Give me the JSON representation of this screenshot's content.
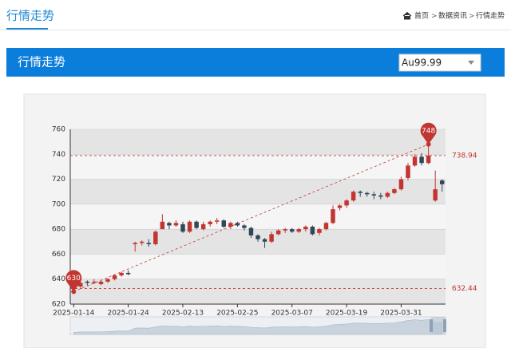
{
  "header": {
    "title": "行情走势",
    "breadcrumb": [
      "首页",
      "数据资讯",
      "行情走势"
    ],
    "separator": ">"
  },
  "panel": {
    "title": "行情走势",
    "select": "Au99.99"
  },
  "chart_data": {
    "type": "candlestick",
    "categories": [
      "2025-01-14",
      null,
      null,
      null,
      null,
      null,
      null,
      null,
      "2025-01-24",
      null,
      null,
      null,
      null,
      null,
      null,
      null,
      "2025-02-13",
      null,
      null,
      null,
      null,
      null,
      null,
      null,
      "2025-02-25",
      null,
      null,
      null,
      null,
      null,
      null,
      null,
      "2025-03-07",
      null,
      null,
      null,
      null,
      null,
      null,
      null,
      "2025-03-19",
      null,
      null,
      null,
      null,
      null,
      null,
      null,
      "2025-03-31",
      null,
      null,
      null,
      null,
      null,
      null
    ],
    "open": [
      634,
      634,
      638,
      637,
      636,
      638,
      640,
      643,
      645,
      668,
      669,
      669,
      668,
      680,
      685,
      683,
      684,
      678,
      686,
      680,
      684,
      686,
      687,
      682,
      685,
      683,
      681,
      675,
      672,
      670,
      676,
      679,
      680,
      678,
      680,
      682,
      677,
      680,
      685,
      697,
      699,
      703,
      710,
      709,
      708,
      707,
      706,
      709,
      712,
      721,
      731,
      738,
      733,
      703,
      719
    ],
    "close": [
      633,
      637,
      637,
      638,
      638,
      640,
      643,
      645,
      644,
      669,
      670,
      668,
      678,
      686,
      683,
      685,
      678,
      686,
      681,
      684,
      686,
      687,
      682,
      685,
      683,
      681,
      675,
      672,
      670,
      676,
      679,
      680,
      678,
      680,
      682,
      676,
      680,
      685,
      696,
      699,
      703,
      710,
      709,
      708,
      707,
      706,
      709,
      712,
      720,
      731,
      738,
      733,
      739,
      712,
      716
    ],
    "low": [
      630,
      633,
      635,
      636,
      635,
      637,
      639,
      642,
      643,
      662,
      667,
      666,
      667,
      680,
      680,
      682,
      677,
      677,
      680,
      679,
      682,
      684,
      681,
      680,
      682,
      679,
      673,
      670,
      665,
      669,
      675,
      677,
      677,
      677,
      678,
      675,
      675,
      679,
      684,
      695,
      697,
      702,
      706,
      706,
      704,
      704,
      705,
      708,
      711,
      719,
      730,
      731,
      732,
      702,
      710
    ],
    "high": [
      635,
      638,
      639,
      640,
      639,
      641,
      644,
      646,
      647,
      670,
      671,
      672,
      679,
      692,
      686,
      687,
      686,
      687,
      687,
      686,
      687,
      689,
      688,
      686,
      686,
      684,
      682,
      676,
      673,
      678,
      680,
      681,
      681,
      681,
      683,
      683,
      681,
      686,
      699,
      700,
      704,
      711,
      711,
      710,
      710,
      709,
      710,
      713,
      722,
      733,
      740,
      741,
      748,
      727,
      720
    ],
    "up_color": "#c23531",
    "down_color": "#314656",
    "ylim": [
      620,
      760
    ],
    "yticks": [
      620,
      640,
      660,
      680,
      700,
      720,
      740,
      760
    ],
    "split_area": true,
    "mark_points": [
      {
        "type": "max",
        "value": 748
      },
      {
        "type": "min",
        "value": 630
      }
    ],
    "mark_lines": [
      {
        "value": 738.94
      },
      {
        "value": 632.44
      }
    ]
  }
}
